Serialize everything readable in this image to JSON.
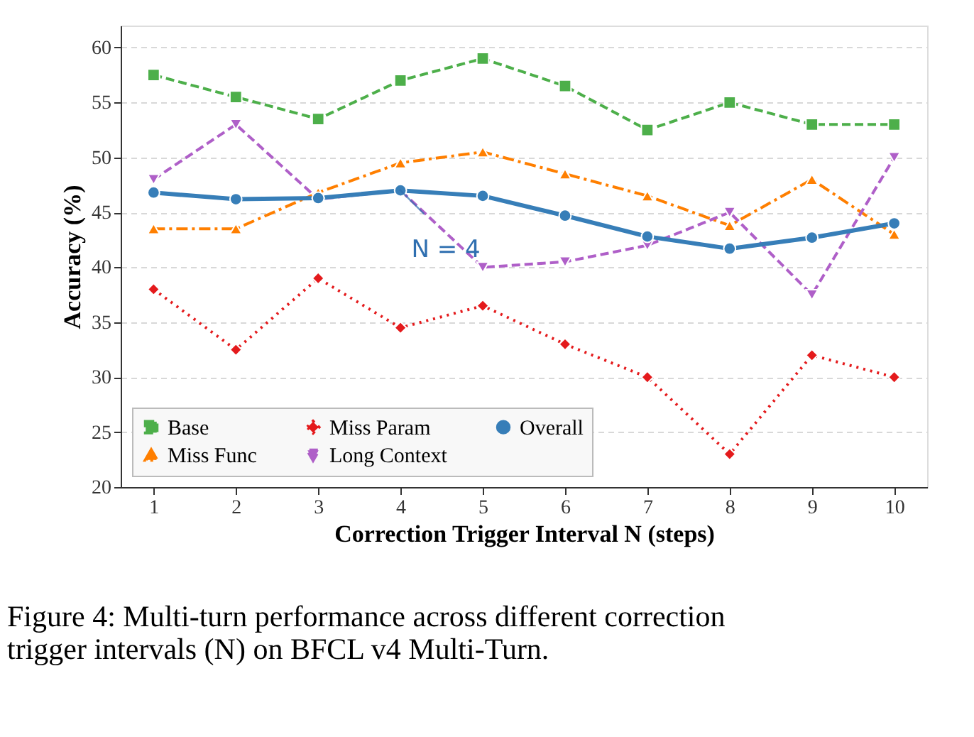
{
  "chart_data": {
    "type": "line",
    "xlabel": "Correction Trigger Interval N (steps)",
    "ylabel": "Accuracy (%)",
    "x": [
      1,
      2,
      3,
      4,
      5,
      6,
      7,
      8,
      9,
      10
    ],
    "xlim": [
      0.6,
      10.4
    ],
    "xticks": [
      1,
      2,
      3,
      4,
      5,
      6,
      7,
      8,
      9,
      10
    ],
    "ylim": [
      20,
      62
    ],
    "yticks": [
      20,
      25,
      30,
      35,
      40,
      45,
      50,
      55,
      60
    ],
    "grid": "y",
    "legend": "bottom left",
    "series": [
      {
        "name": "Base",
        "color": "#4daf4a",
        "marker": "square",
        "line_style": "dashed",
        "values": [
          57.5,
          55.5,
          53.5,
          57,
          59,
          56.5,
          52.5,
          55,
          53,
          53
        ]
      },
      {
        "name": "Miss Func",
        "color": "#ff7f00",
        "marker": "triangle",
        "line_style": "dashdot",
        "values": [
          43.5,
          43.5,
          46.8,
          49.5,
          50.5,
          48.5,
          46.5,
          43.8,
          48,
          43
        ]
      },
      {
        "name": "Miss Param",
        "color": "#e41a1c",
        "marker": "diamond",
        "line_style": "dotted",
        "values": [
          38,
          32.5,
          39,
          34.5,
          36.5,
          33,
          30,
          23,
          32,
          30
        ]
      },
      {
        "name": "Long Context",
        "color": "#af5fc8",
        "marker": "triangle-down",
        "line_style": "dashed",
        "values": [
          48,
          53,
          46.2,
          47,
          40,
          40.5,
          42,
          45,
          37.5,
          50
        ]
      },
      {
        "name": "Overall",
        "color": "#377eb8",
        "marker": "circle",
        "line_style": "solid",
        "values": [
          46.8,
          46.2,
          46.3,
          47,
          46.5,
          44.7,
          42.8,
          41.7,
          42.7,
          44
        ]
      }
    ],
    "annotations": [
      {
        "text": "N = 4",
        "x": 4,
        "y": 47
      },
      "Figure 4: Multi-turn performance across different correction trigger intervals (N) on BFCL v4 Multi-Turn."
    ]
  }
}
